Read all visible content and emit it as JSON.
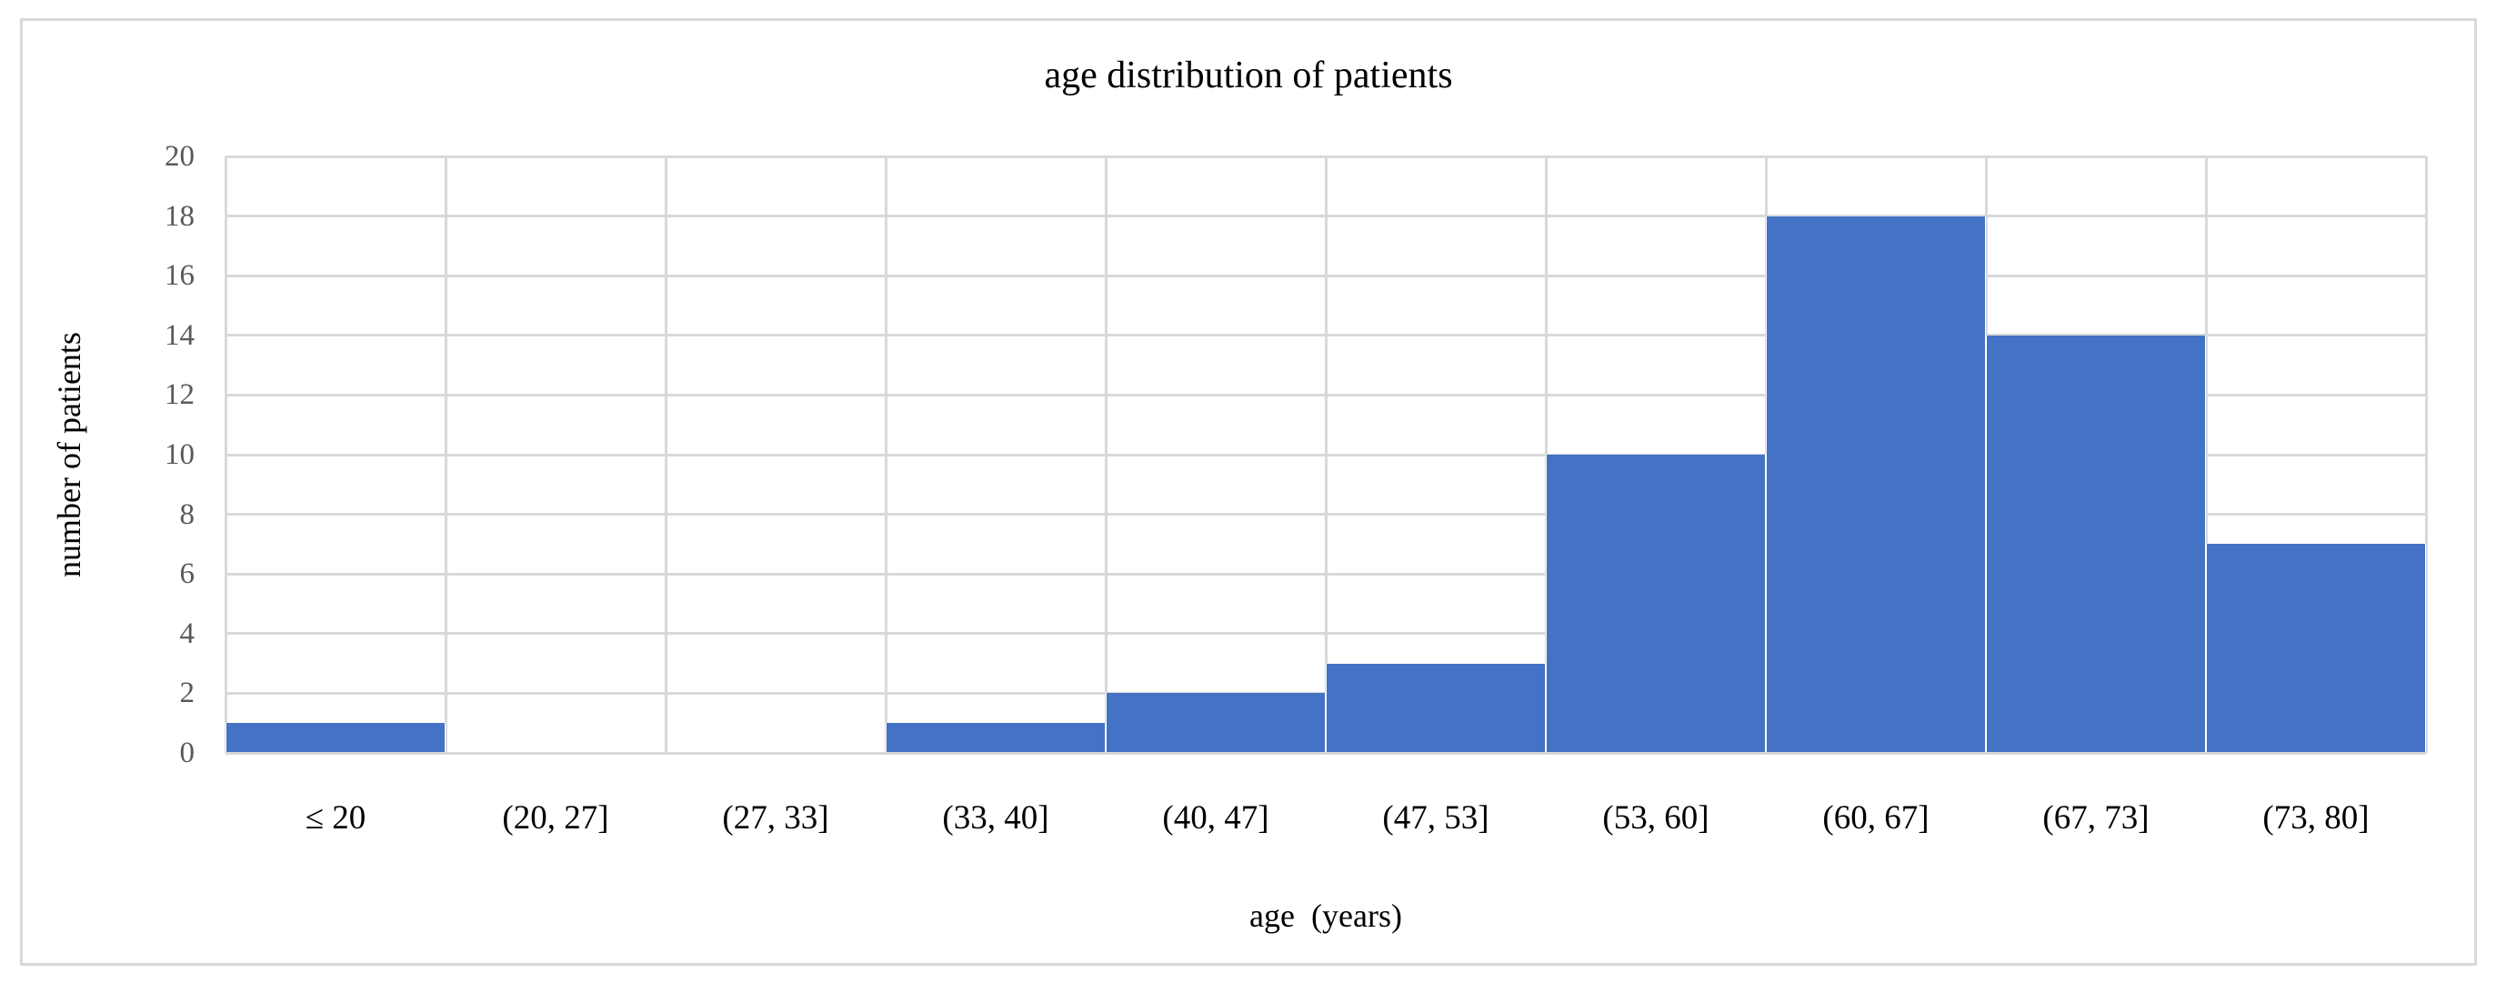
{
  "chart_data": {
    "type": "bar",
    "title": "age distribution of patients",
    "xlabel": "age  (years)",
    "ylabel": "number of patients",
    "categories": [
      "≤ 20",
      "(20, 27]",
      "(27, 33]",
      "(33, 40]",
      "(40, 47]",
      "(47, 53]",
      "(53, 60]",
      "(60, 67]",
      "(67, 73]",
      "(73, 80]"
    ],
    "values": [
      1,
      0,
      0,
      1,
      2,
      3,
      10,
      18,
      14,
      7
    ],
    "ylim": [
      0,
      20
    ],
    "yticks": [
      0,
      2,
      4,
      6,
      8,
      10,
      12,
      14,
      16,
      18,
      20
    ],
    "grid": true,
    "legend": false,
    "colors": {
      "bar": "#4472C4",
      "gridline": "#d9d9d9",
      "frame_border": "#d9d9d9",
      "tick_label": "#595959",
      "text": "#000000",
      "background": "#ffffff"
    }
  }
}
